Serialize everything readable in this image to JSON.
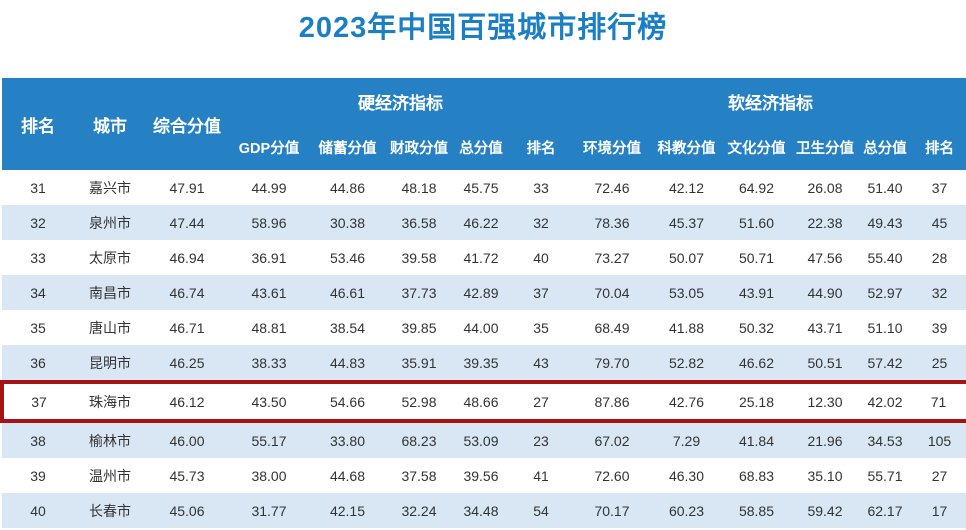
{
  "title": "2023年中国百强城市排行榜",
  "colors": {
    "title_text": "#1a7fc4",
    "header_bg": "#2581c4",
    "header_text": "#ffffff",
    "row_alt_bg": "#d9e7f4",
    "body_text": "#333333",
    "highlight_border": "#a41414"
  },
  "chart_data": {
    "type": "table",
    "title": "2023年中国百强城市排行榜",
    "header": {
      "rank": "排名",
      "city": "城市",
      "composite": "综合分值",
      "hard_group": "硬经济指标",
      "soft_group": "软经济指标",
      "hard_cols": [
        "GDP分值",
        "储蓄分值",
        "财政分值",
        "总分值",
        "排名"
      ],
      "soft_cols": [
        "环境分值",
        "科教分值",
        "文化分值",
        "卫生分值",
        "总分值",
        "排名"
      ]
    },
    "rows": [
      {
        "rank": "31",
        "city": "嘉兴市",
        "composite": "47.91",
        "hard": [
          "44.99",
          "44.86",
          "48.18",
          "45.75",
          "33"
        ],
        "soft": [
          "72.46",
          "42.12",
          "64.92",
          "26.08",
          "51.40",
          "37"
        ],
        "highlighted": false
      },
      {
        "rank": "32",
        "city": "泉州市",
        "composite": "47.44",
        "hard": [
          "58.96",
          "30.38",
          "36.58",
          "46.22",
          "32"
        ],
        "soft": [
          "78.36",
          "45.37",
          "51.60",
          "22.38",
          "49.43",
          "45"
        ],
        "highlighted": false
      },
      {
        "rank": "33",
        "city": "太原市",
        "composite": "46.94",
        "hard": [
          "36.91",
          "53.46",
          "39.58",
          "41.72",
          "40"
        ],
        "soft": [
          "73.27",
          "50.07",
          "50.71",
          "47.56",
          "55.40",
          "28"
        ],
        "highlighted": false
      },
      {
        "rank": "34",
        "city": "南昌市",
        "composite": "46.74",
        "hard": [
          "43.61",
          "46.61",
          "37.73",
          "42.89",
          "37"
        ],
        "soft": [
          "70.04",
          "53.05",
          "43.91",
          "44.90",
          "52.97",
          "32"
        ],
        "highlighted": false
      },
      {
        "rank": "35",
        "city": "唐山市",
        "composite": "46.71",
        "hard": [
          "48.81",
          "38.54",
          "39.85",
          "44.00",
          "35"
        ],
        "soft": [
          "68.49",
          "41.88",
          "50.32",
          "43.71",
          "51.10",
          "39"
        ],
        "highlighted": false
      },
      {
        "rank": "36",
        "city": "昆明市",
        "composite": "46.25",
        "hard": [
          "38.33",
          "44.83",
          "35.91",
          "39.35",
          "43"
        ],
        "soft": [
          "79.70",
          "52.82",
          "46.62",
          "50.51",
          "57.42",
          "25"
        ],
        "highlighted": false
      },
      {
        "rank": "37",
        "city": "珠海市",
        "composite": "46.12",
        "hard": [
          "43.50",
          "54.66",
          "52.98",
          "48.66",
          "27"
        ],
        "soft": [
          "87.86",
          "42.76",
          "25.18",
          "12.30",
          "42.02",
          "71"
        ],
        "highlighted": true
      },
      {
        "rank": "38",
        "city": "榆林市",
        "composite": "46.00",
        "hard": [
          "55.17",
          "33.80",
          "68.23",
          "53.09",
          "23"
        ],
        "soft": [
          "67.02",
          "7.29",
          "41.84",
          "21.96",
          "34.53",
          "105"
        ],
        "highlighted": false
      },
      {
        "rank": "39",
        "city": "温州市",
        "composite": "45.73",
        "hard": [
          "38.00",
          "44.68",
          "37.58",
          "39.56",
          "41"
        ],
        "soft": [
          "72.60",
          "46.30",
          "68.83",
          "35.10",
          "55.71",
          "27"
        ],
        "highlighted": false
      },
      {
        "rank": "40",
        "city": "长春市",
        "composite": "45.06",
        "hard": [
          "31.77",
          "42.15",
          "32.24",
          "34.48",
          "54"
        ],
        "soft": [
          "70.17",
          "60.23",
          "58.85",
          "59.42",
          "62.17",
          "17"
        ],
        "highlighted": false
      }
    ]
  }
}
